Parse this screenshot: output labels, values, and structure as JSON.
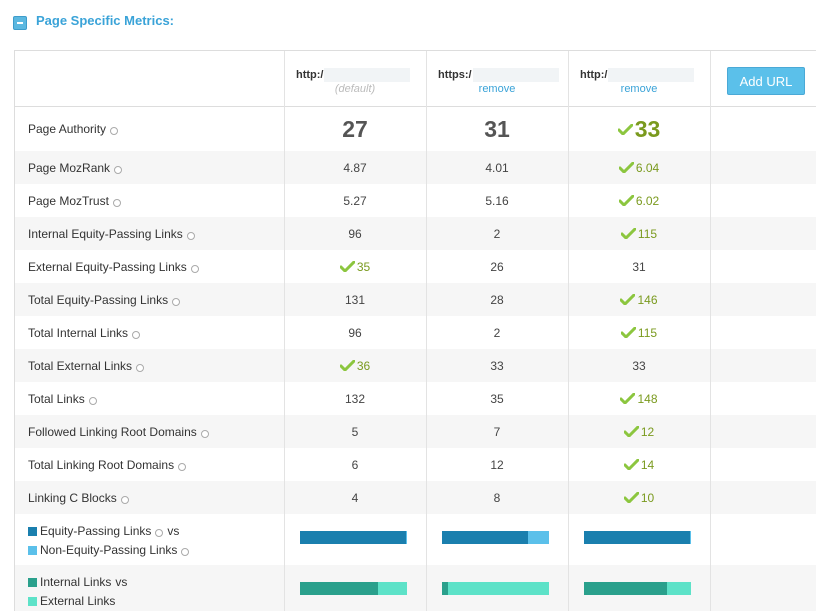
{
  "section": {
    "title": "Page Specific Metrics:"
  },
  "urls": [
    {
      "prefix": "http:/",
      "sub": "(default)",
      "sub_kind": "default"
    },
    {
      "prefix": "https:/",
      "sub": "remove",
      "sub_kind": "remove"
    },
    {
      "prefix": "http:/",
      "sub": "remove",
      "sub_kind": "remove"
    }
  ],
  "add_url_label": "Add URL",
  "metrics": [
    {
      "label": "Page Authority",
      "values": [
        "27",
        "31",
        "33"
      ],
      "winner": 2,
      "big": true
    },
    {
      "label": "Page MozRank",
      "values": [
        "4.87",
        "4.01",
        "6.04"
      ],
      "winner": 2
    },
    {
      "label": "Page MozTrust",
      "values": [
        "5.27",
        "5.16",
        "6.02"
      ],
      "winner": 2
    },
    {
      "label": "Internal Equity-Passing Links",
      "values": [
        "96",
        "2",
        "115"
      ],
      "winner": 2
    },
    {
      "label": "External Equity-Passing Links",
      "values": [
        "35",
        "26",
        "31"
      ],
      "winner": 0
    },
    {
      "label": "Total Equity-Passing Links",
      "values": [
        "131",
        "28",
        "146"
      ],
      "winner": 2
    },
    {
      "label": "Total Internal Links",
      "values": [
        "96",
        "2",
        "115"
      ],
      "winner": 2
    },
    {
      "label": "Total External Links",
      "values": [
        "36",
        "33",
        "33"
      ],
      "winner": 0
    },
    {
      "label": "Total Links",
      "values": [
        "132",
        "35",
        "148"
      ],
      "winner": 2
    },
    {
      "label": "Followed Linking Root Domains",
      "values": [
        "5",
        "7",
        "12"
      ],
      "winner": 2
    },
    {
      "label": "Total Linking Root Domains",
      "values": [
        "6",
        "12",
        "14"
      ],
      "winner": 2
    },
    {
      "label": "Linking C Blocks",
      "values": [
        "4",
        "8",
        "10"
      ],
      "winner": 2
    }
  ],
  "equity_legend": {
    "line1": "Equity-Passing Links",
    "line1_suffix": "vs",
    "line2": "Non-Equity-Passing Links",
    "color1": "#1a7fae",
    "color2": "#5bc0ea"
  },
  "equity_fractions": [
    0.99,
    0.8,
    0.99
  ],
  "internal_legend": {
    "line1": "Internal Links",
    "line1_suffix": "vs",
    "line2": "External Links",
    "color1": "#2aa08c",
    "color2": "#5de2c8"
  },
  "internal_fractions": [
    0.73,
    0.06,
    0.78
  ]
}
